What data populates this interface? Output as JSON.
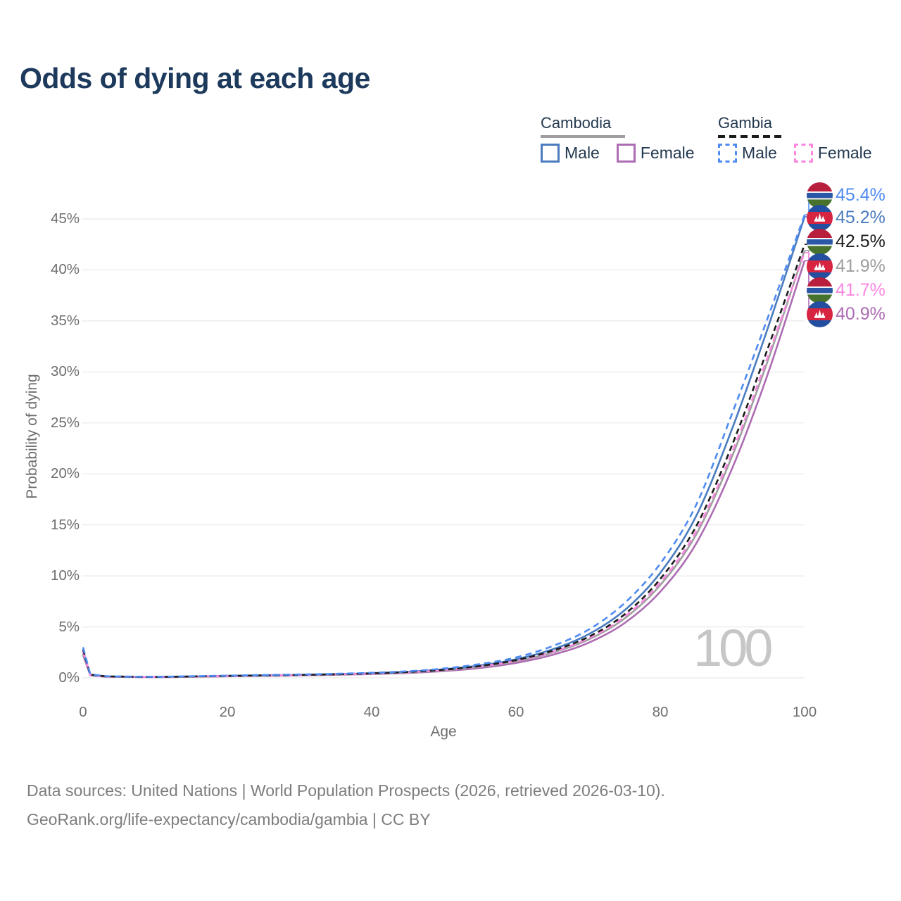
{
  "title": "Odds of dying at each age",
  "legend": {
    "groups": [
      {
        "name": "Cambodia",
        "line_style": "solid",
        "underline_color": "#9e9e9e",
        "items": [
          {
            "label": "Male",
            "color": "#4a7cbf"
          },
          {
            "label": "Female",
            "color": "#ad6cb3"
          }
        ]
      },
      {
        "name": "Gambia",
        "line_style": "dashed",
        "underline_color": "#1c1c1c",
        "items": [
          {
            "label": "Male",
            "color": "#4f8bf2"
          },
          {
            "label": "Female",
            "color": "#fb87e0"
          }
        ]
      }
    ]
  },
  "chart_data": {
    "type": "line",
    "title": "Odds of dying at each age",
    "xlabel": "Age",
    "ylabel": "Probability of dying",
    "xlim": [
      0,
      100
    ],
    "ylim": [
      0,
      47
    ],
    "x_ticks": [
      0,
      20,
      40,
      60,
      80,
      100
    ],
    "y_ticks": [
      0,
      5,
      10,
      15,
      20,
      25,
      30,
      35,
      40,
      45
    ],
    "y_tick_suffix": "%",
    "grid": "horizontal",
    "legend_position": "top-right",
    "watermark": "100",
    "ages": [
      0,
      1,
      3,
      5,
      10,
      15,
      20,
      25,
      30,
      35,
      40,
      45,
      50,
      55,
      60,
      65,
      70,
      75,
      80,
      85,
      90,
      95,
      100
    ],
    "series": [
      {
        "name": "Gambia — Male",
        "country": "gambia",
        "sex": "male",
        "color": "#4f8bf2",
        "dashed": true,
        "end_label": "45.4%",
        "end_value": 45.4,
        "values": [
          3.0,
          0.35,
          0.18,
          0.14,
          0.11,
          0.16,
          0.22,
          0.28,
          0.33,
          0.4,
          0.5,
          0.65,
          0.92,
          1.35,
          2.0,
          3.1,
          4.7,
          7.3,
          11.2,
          17.0,
          26.0,
          35.5,
          45.4
        ]
      },
      {
        "name": "Cambodia — Male",
        "country": "cambodia",
        "sex": "male",
        "color": "#4a7cbf",
        "dashed": false,
        "end_label": "45.2%",
        "end_value": 45.2,
        "values": [
          2.65,
          0.3,
          0.15,
          0.12,
          0.09,
          0.14,
          0.2,
          0.25,
          0.3,
          0.37,
          0.46,
          0.6,
          0.84,
          1.22,
          1.82,
          2.78,
          4.25,
          6.6,
          10.3,
          15.9,
          24.5,
          34.5,
          45.2
        ]
      },
      {
        "name": "Gambia — Both sexes",
        "country": "gambia",
        "sex": "both",
        "color": "#1c1c1c",
        "dashed": true,
        "end_label": "42.5%",
        "end_value": 42.5,
        "values": [
          2.8,
          0.32,
          0.16,
          0.13,
          0.1,
          0.14,
          0.19,
          0.24,
          0.29,
          0.35,
          0.44,
          0.57,
          0.8,
          1.16,
          1.74,
          2.65,
          4.0,
          6.2,
          9.7,
          14.9,
          22.9,
          32.5,
          42.5
        ]
      },
      {
        "name": "Cambodia — Both sexes",
        "country": "cambodia",
        "sex": "both",
        "color": "#9e9e9e",
        "dashed": false,
        "end_label": "41.9%",
        "end_value": 41.9,
        "values": [
          2.45,
          0.28,
          0.14,
          0.11,
          0.08,
          0.12,
          0.17,
          0.22,
          0.27,
          0.33,
          0.41,
          0.53,
          0.74,
          1.08,
          1.62,
          2.47,
          3.74,
          5.8,
          9.1,
          14.1,
          21.8,
          31.3,
          41.9
        ]
      },
      {
        "name": "Gambia — Female",
        "country": "gambia",
        "sex": "female",
        "color": "#fb87e0",
        "dashed": true,
        "end_label": "41.7%",
        "end_value": 41.7,
        "values": [
          2.6,
          0.29,
          0.14,
          0.11,
          0.09,
          0.13,
          0.18,
          0.23,
          0.28,
          0.34,
          0.42,
          0.55,
          0.77,
          1.11,
          1.67,
          2.54,
          3.85,
          5.97,
          9.35,
          14.4,
          22.2,
          31.7,
          41.7
        ]
      },
      {
        "name": "Cambodia — Female",
        "country": "cambodia",
        "sex": "female",
        "color": "#ad6cb3",
        "dashed": false,
        "end_label": "40.9%",
        "end_value": 40.9,
        "values": [
          2.25,
          0.25,
          0.12,
          0.1,
          0.07,
          0.11,
          0.15,
          0.2,
          0.24,
          0.3,
          0.37,
          0.48,
          0.67,
          0.97,
          1.46,
          2.24,
          3.42,
          5.35,
          8.45,
          13.2,
          20.6,
          30.0,
          40.9
        ]
      }
    ],
    "flag_colors": {
      "gambia": {
        "red": "#b81f3d",
        "white": "#ffffff",
        "blue": "#2b57a7",
        "green": "#47722e"
      },
      "cambodia": {
        "blue": "#234fa0",
        "red": "#d62441",
        "temple": "#ffffff"
      }
    }
  },
  "footer": {
    "line1": "Data sources: United Nations | World Population Prospects (2026, retrieved 2026-03-10).",
    "line2": "GeoRank.org/life-expectancy/cambodia/gambia | CC BY"
  }
}
